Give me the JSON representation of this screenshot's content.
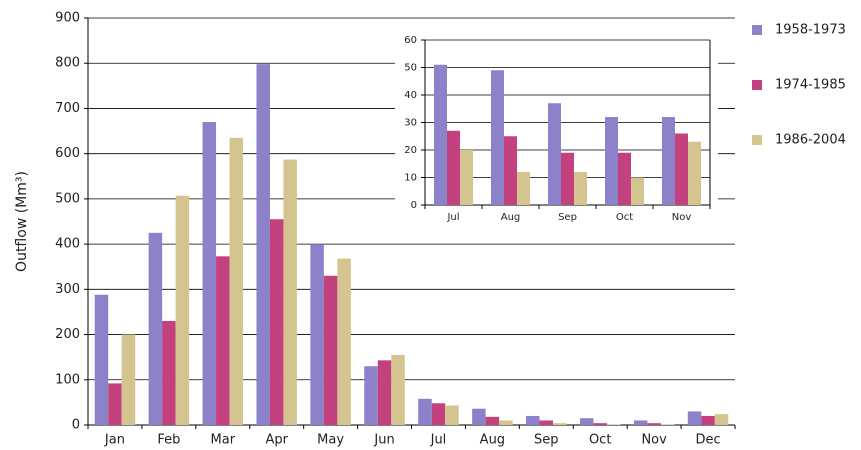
{
  "chart_data": [
    {
      "type": "bar",
      "y_label": "Outflow (Mm³)",
      "categories": [
        "Jan",
        "Feb",
        "Mar",
        "Apr",
        "May",
        "Jun",
        "Jul",
        "Aug",
        "Sep",
        "Oct",
        "Nov",
        "Dec"
      ],
      "series": [
        {
          "name": "1958-1973",
          "color": "#8b82c9",
          "values": [
            288,
            425,
            670,
            798,
            400,
            130,
            58,
            36,
            20,
            15,
            10,
            30
          ]
        },
        {
          "name": "1974-1985",
          "color": "#c4417f",
          "values": [
            92,
            230,
            373,
            455,
            330,
            143,
            48,
            18,
            10,
            4,
            4,
            20
          ]
        },
        {
          "name": "1986-2004",
          "color": "#d4c48f",
          "values": [
            200,
            507,
            635,
            587,
            368,
            155,
            43,
            10,
            4,
            1,
            1,
            24
          ]
        }
      ],
      "ylim": [
        0,
        900
      ],
      "yticks": [
        0,
        100,
        200,
        300,
        400,
        500,
        600,
        700,
        800,
        900
      ],
      "grid": true
    },
    {
      "type": "bar",
      "categories": [
        "Jul",
        "Aug",
        "Sep",
        "Oct",
        "Nov"
      ],
      "series": [
        {
          "color": "#8b82c9",
          "values": [
            51,
            49,
            37,
            32,
            32
          ]
        },
        {
          "color": "#c4417f",
          "values": [
            27,
            25,
            19,
            19,
            26
          ]
        },
        {
          "color": "#d4c48f",
          "values": [
            20,
            12,
            12,
            10,
            23
          ]
        }
      ],
      "ylim": [
        0,
        60
      ],
      "yticks": [
        0,
        10,
        20,
        30,
        40,
        50,
        60
      ],
      "grid": true
    }
  ]
}
